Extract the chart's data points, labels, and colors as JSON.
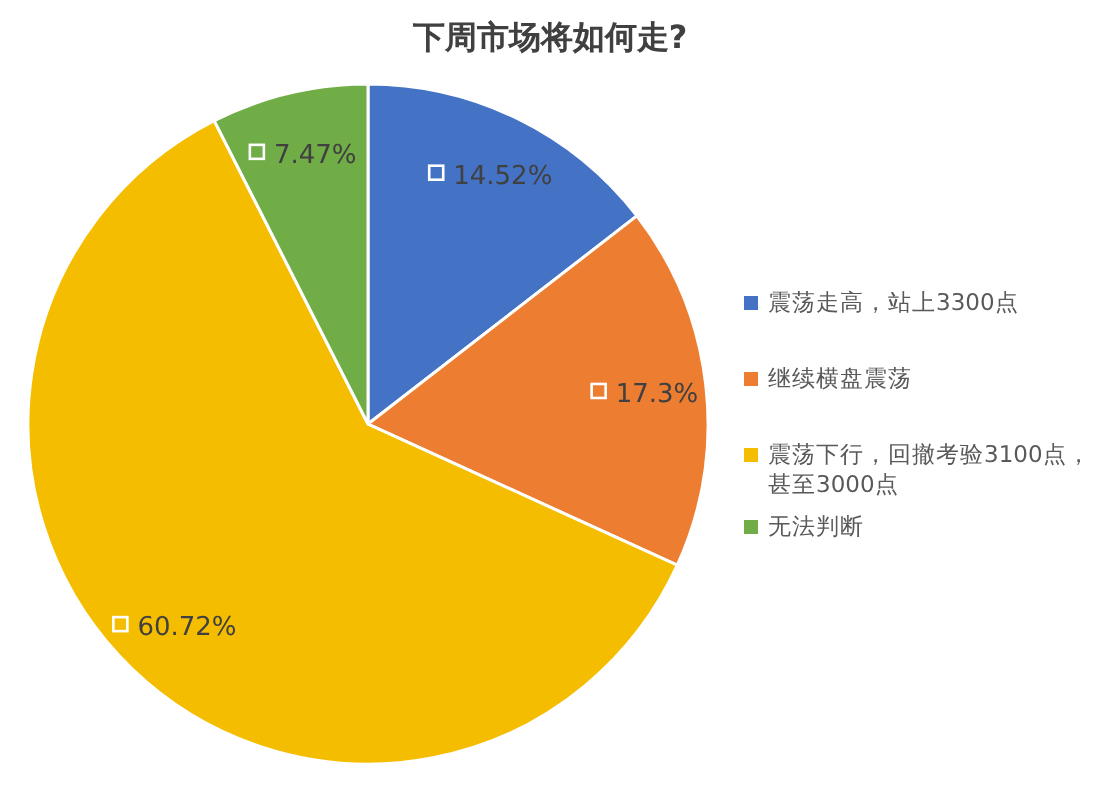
{
  "chart_data": {
    "type": "pie",
    "title": "下周市场将如何走?",
    "categories": [
      "震荡走高，站上3300点",
      "继续横盘震荡",
      "震荡下行，回撤考验3100点，甚至3000点",
      "无法判断"
    ],
    "values": [
      14.52,
      17.3,
      60.72,
      7.47
    ],
    "colors": [
      "#4472c4",
      "#ed7d31",
      "#f5bd00",
      "#70ad47"
    ],
    "value_labels": [
      "14.52%",
      "17.3%",
      "60.72%",
      "7.47%"
    ],
    "legend": "right"
  }
}
